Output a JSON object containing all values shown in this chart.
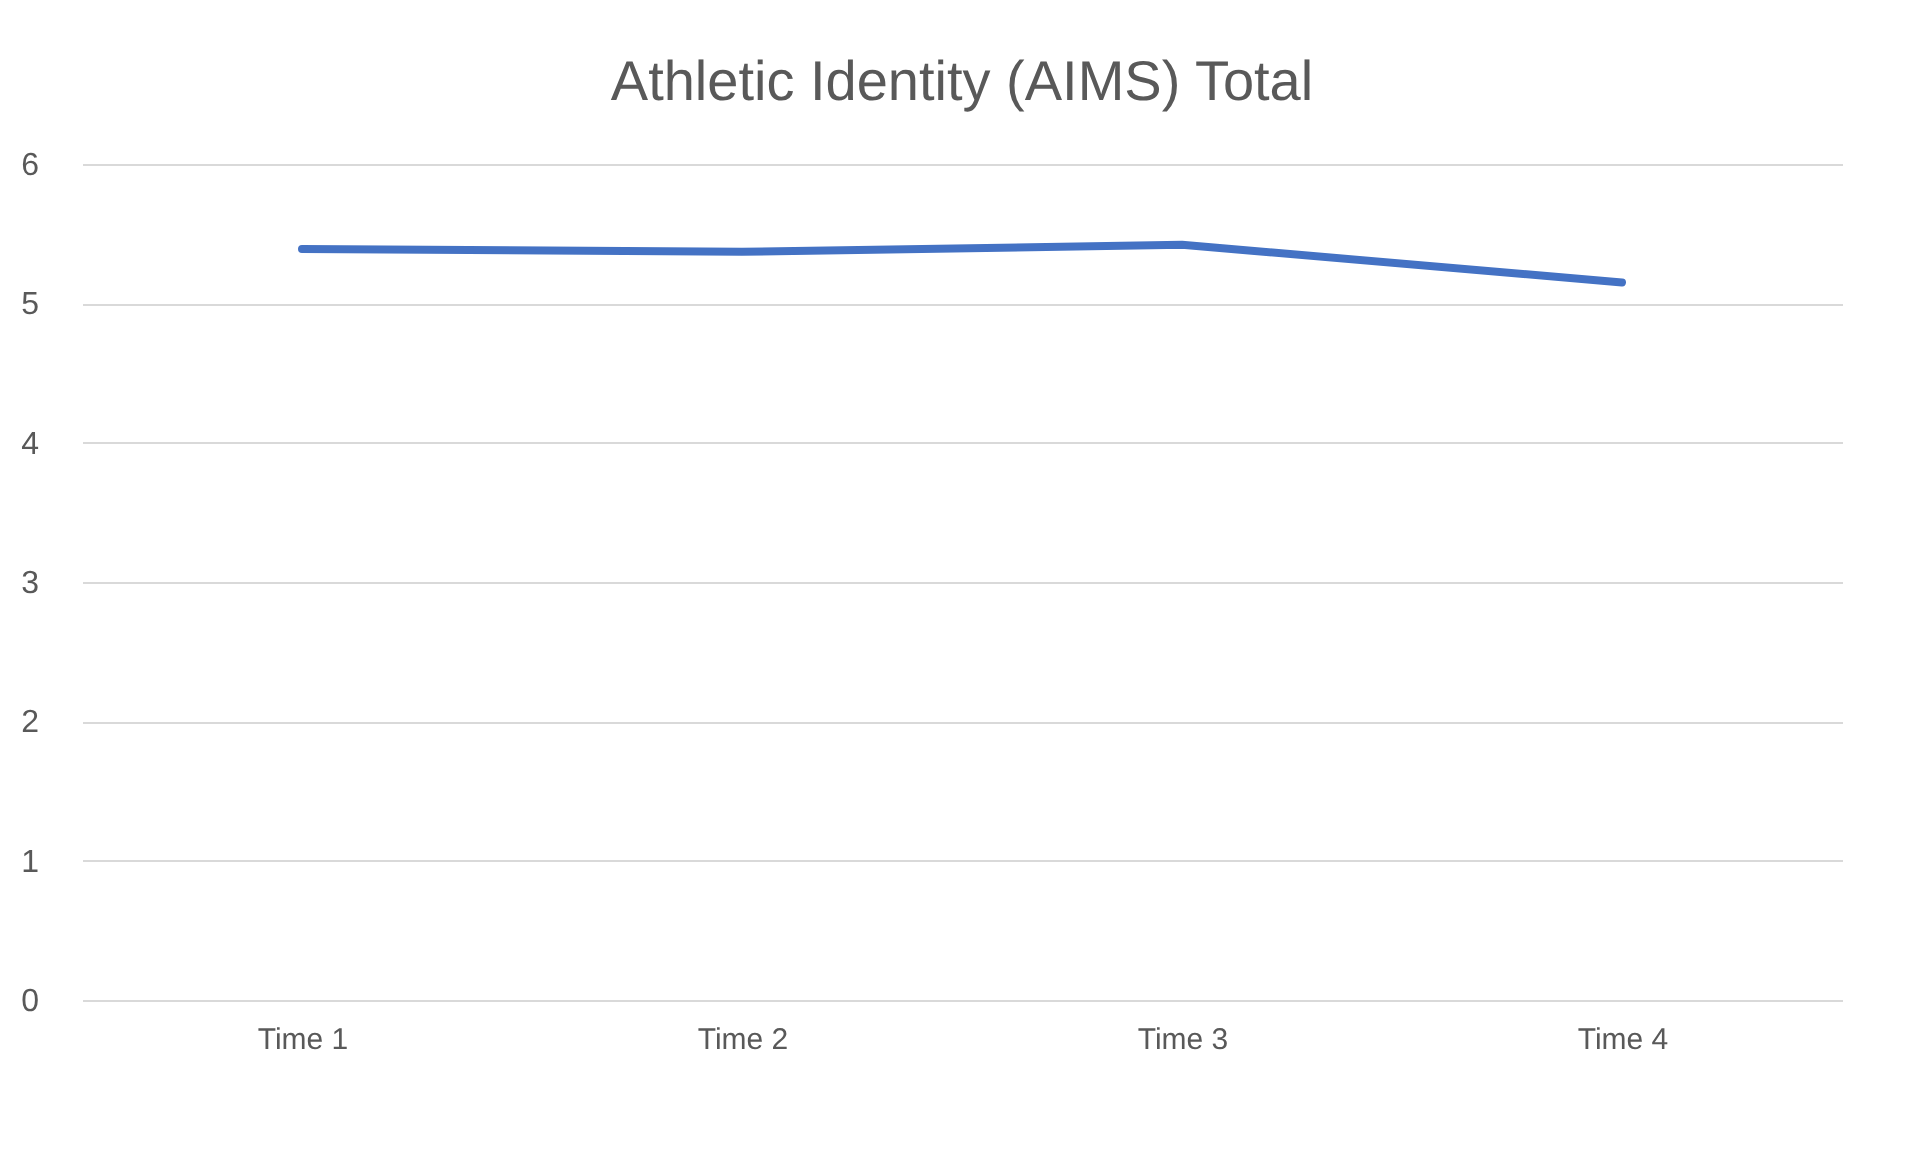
{
  "chart_data": {
    "type": "line",
    "title": "Athletic Identity (AIMS) Total",
    "categories": [
      "Time 1",
      "Time 2",
      "Time 3",
      "Time 4"
    ],
    "series": [
      {
        "color": "#4472c4",
        "values": [
          5.39,
          5.37,
          5.42,
          5.15
        ]
      }
    ],
    "ylim": [
      0,
      6
    ],
    "yticks": [
      0,
      1,
      2,
      3,
      4,
      5,
      6
    ],
    "grid": "y",
    "marker": "none",
    "line_style": "solid"
  }
}
